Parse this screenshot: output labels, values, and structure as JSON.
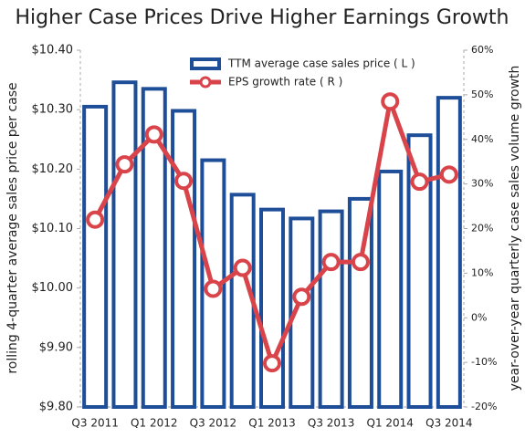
{
  "chart_data": {
    "type": "bar_line",
    "title": "Higher Case Prices Drive Higher Earnings Growth",
    "y_label": "rolling 4-quarter average sales price per case",
    "y2_label": "year-over-year  quarterly case sales volume growth",
    "categories": [
      "Q3 2011",
      null,
      "Q1 2012",
      null,
      "Q3 2012",
      null,
      "Q1 2013",
      null,
      "Q3 2013",
      null,
      "Q1 2014",
      null,
      "Q3 2014"
    ],
    "series": [
      {
        "name": "TTM average case sales price ( L )",
        "color": "#1f4e99",
        "type": "bar",
        "values": [
          10.305,
          10.346,
          10.335,
          10.298,
          10.215,
          10.157,
          10.132,
          10.117,
          10.129,
          10.15,
          10.196,
          10.257,
          10.32
        ]
      },
      {
        "name": "EPS growth rate ( R )",
        "color": "#d9434a",
        "type": "line",
        "axis": "y2",
        "values": [
          22,
          34.4,
          41.1,
          30.7,
          6.5,
          11.2,
          -10.2,
          4.7,
          12.5,
          12.5,
          48.5,
          30.5,
          32.1
        ]
      }
    ],
    "ylim": [
      9.8,
      10.4
    ],
    "yticks": [
      {
        "value": 9.8,
        "label": "$9.80"
      },
      {
        "value": 9.9,
        "label": "$9.90"
      },
      {
        "value": 10.0,
        "label": "$10.00"
      },
      {
        "value": 10.1,
        "label": "$10.10"
      },
      {
        "value": 10.2,
        "label": "$10.20"
      },
      {
        "value": 10.3,
        "label": "$10.30"
      },
      {
        "value": 10.4,
        "label": "$10.40"
      }
    ],
    "y2lim": [
      -20,
      60
    ],
    "y2ticks": [
      {
        "value": -20,
        "label": "-20%"
      },
      {
        "value": -10,
        "label": "-10%"
      },
      {
        "value": 0,
        "label": "0%"
      },
      {
        "value": 10,
        "label": "10%"
      },
      {
        "value": 20,
        "label": "20%"
      },
      {
        "value": 30,
        "label": "30%"
      },
      {
        "value": 40,
        "label": "40%"
      },
      {
        "value": 50,
        "label": "50%"
      },
      {
        "value": 60,
        "label": "60%"
      }
    ],
    "legend": "top"
  }
}
